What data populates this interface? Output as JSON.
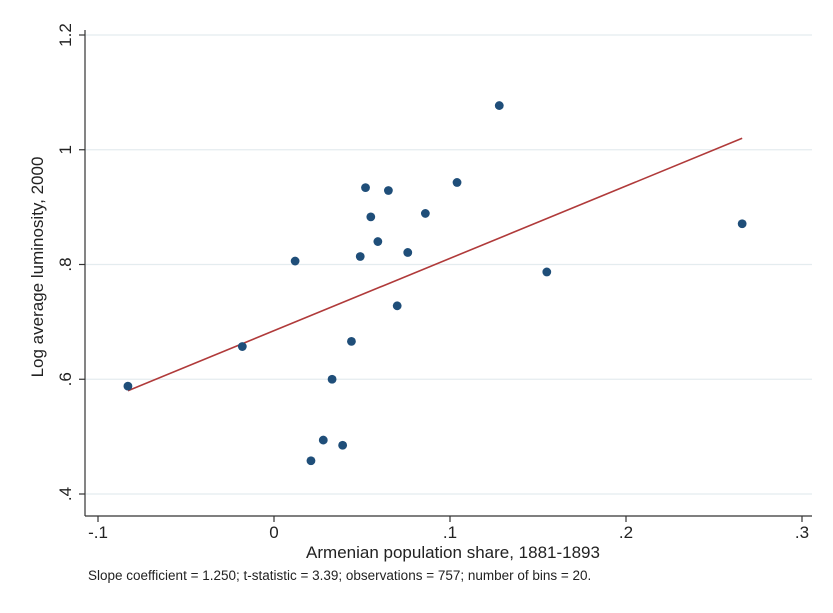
{
  "chart_data": {
    "type": "scatter",
    "xlabel": "Armenian population share, 1881-1893",
    "ylabel": "Log average luminosity, 2000",
    "xlim": [
      -0.1,
      0.3
    ],
    "ylim": [
      0.4,
      1.2
    ],
    "x_ticks": [
      -0.1,
      0,
      0.1,
      0.2,
      0.3
    ],
    "x_tick_labels": [
      "-.1",
      "0",
      ".1",
      ".2",
      ".3"
    ],
    "y_ticks": [
      0.4,
      0.6,
      0.8,
      1.0,
      1.2
    ],
    "y_tick_labels": [
      ".4",
      ".6",
      ".8",
      "1",
      "1.2"
    ],
    "grid": "horizontal",
    "colors": {
      "points": "#1f4e79",
      "fit_line": "#b03a3a",
      "grid": "#e4ecef",
      "axis": "#333333"
    },
    "points": [
      {
        "x": -0.083,
        "y": 0.588
      },
      {
        "x": -0.018,
        "y": 0.657
      },
      {
        "x": 0.012,
        "y": 0.806
      },
      {
        "x": 0.021,
        "y": 0.458
      },
      {
        "x": 0.028,
        "y": 0.494
      },
      {
        "x": 0.033,
        "y": 0.6
      },
      {
        "x": 0.039,
        "y": 0.485
      },
      {
        "x": 0.044,
        "y": 0.666
      },
      {
        "x": 0.049,
        "y": 0.814
      },
      {
        "x": 0.052,
        "y": 0.934
      },
      {
        "x": 0.055,
        "y": 0.883
      },
      {
        "x": 0.059,
        "y": 0.84
      },
      {
        "x": 0.065,
        "y": 0.929
      },
      {
        "x": 0.07,
        "y": 0.728
      },
      {
        "x": 0.076,
        "y": 0.821
      },
      {
        "x": 0.086,
        "y": 0.889
      },
      {
        "x": 0.104,
        "y": 0.943
      },
      {
        "x": 0.128,
        "y": 1.077
      },
      {
        "x": 0.155,
        "y": 0.787
      },
      {
        "x": 0.266,
        "y": 0.871
      }
    ],
    "fit_line": {
      "x": [
        -0.083,
        0.266
      ],
      "y": [
        0.58,
        1.02
      ]
    },
    "note": "Slope coefficient =  1.250; t-statistic = 3.39; observations = 757; number of bins = 20."
  }
}
